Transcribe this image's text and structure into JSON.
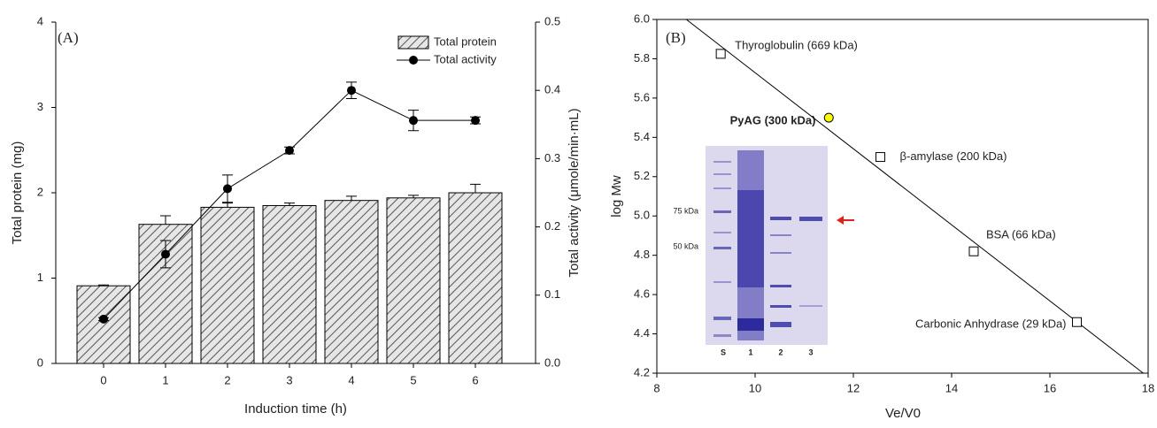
{
  "chart_data": [
    {
      "type": "bar_line",
      "panel_label": "(A)",
      "xlabel": "Induction time (h)",
      "ylabel": "Total protein (mg)",
      "y2label": "Total activity (μmole/min·mL)",
      "categories": [
        "0",
        "1",
        "2",
        "3",
        "4",
        "5",
        "6"
      ],
      "series": [
        {
          "name": "Total protein",
          "type": "bar",
          "color": "#555555",
          "values": [
            0.91,
            1.63,
            1.83,
            1.85,
            1.91,
            1.94,
            2.0
          ],
          "errors": [
            0.01,
            0.1,
            0.05,
            0.03,
            0.05,
            0.03,
            0.1
          ]
        },
        {
          "name": "Total activity",
          "type": "line",
          "axis": "y2",
          "color": "#000000",
          "values": [
            0.065,
            0.16,
            0.256,
            0.312,
            0.4,
            0.356,
            0.356
          ],
          "errors": [
            0.002,
            0.02,
            0.02,
            0.005,
            0.012,
            0.015,
            0.005
          ]
        }
      ],
      "ylim": [
        0,
        4
      ],
      "yticks": [
        0,
        1,
        2,
        3,
        4
      ],
      "y2lim": [
        0,
        0.5
      ],
      "y2ticks": [
        {
          "value": 0,
          "label": "0.0"
        },
        0.1,
        0.2,
        0.3,
        0.4,
        0.5
      ],
      "legend": "upper right"
    },
    {
      "type": "scatter",
      "panel_label": "(B)",
      "xlabel": "Ve/V0",
      "ylabel": "log Mw",
      "xlim": [
        8,
        18
      ],
      "xticks": [
        8,
        10,
        12,
        14,
        16,
        18
      ],
      "ylim": [
        4.2,
        6.0
      ],
      "yticks": [
        4.2,
        4.4,
        4.6,
        4.8,
        {
          "value": 5,
          "label": "5.0"
        },
        5.2,
        5.4,
        5.6,
        5.8,
        {
          "value": 6,
          "label": "6.0"
        }
      ],
      "points": {
        "x": [
          9.3,
          12.55,
          14.45,
          16.55
        ],
        "y": [
          5.825,
          5.3,
          4.82,
          4.46
        ],
        "labels": [
          "Thyroglobulin (669 kDa)",
          "β-amylase (200 kDa)",
          "BSA (66 kDa)",
          "Carbonic Anhydrase (29 kDa)"
        ],
        "color": "#ffffff"
      },
      "sample": {
        "x": 11.5,
        "y": 5.5,
        "label": "PyAG (300 kDa)",
        "color": "#ffff00"
      },
      "fit": {
        "x": [
          8.6,
          17.9
        ],
        "y": [
          6.0,
          4.2
        ],
        "color": "#000000"
      },
      "inset": {
        "marker_labels": [
          "75 kDa",
          "50 kDa"
        ],
        "lanes": [
          "S",
          "1",
          "2",
          "3"
        ]
      }
    }
  ]
}
